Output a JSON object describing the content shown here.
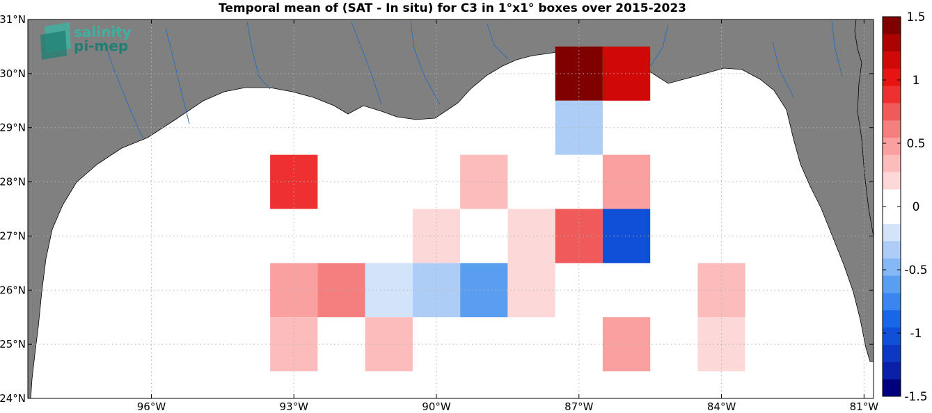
{
  "title": "Temporal mean of (SAT - In situ) for C3 in 1°x1° boxes over 2015-2023",
  "logo": {
    "line1": "salinity",
    "line2": "pi-mep",
    "color1": "#3fb0a0",
    "color2": "#1e7f72"
  },
  "map": {
    "lon_range": [
      -98.6,
      -80.8
    ],
    "lat_range": [
      24,
      31
    ],
    "land_color": "#808080",
    "ocean_color": "#ffffff",
    "river_color": "#2f6fb5",
    "lat_ticks": [
      {
        "value": 24,
        "label": "24°N"
      },
      {
        "value": 25,
        "label": "25°N"
      },
      {
        "value": 26,
        "label": "26°N"
      },
      {
        "value": 27,
        "label": "27°N"
      },
      {
        "value": 28,
        "label": "28°N"
      },
      {
        "value": 29,
        "label": "29°N"
      },
      {
        "value": 30,
        "label": "30°N"
      },
      {
        "value": 31,
        "label": "31°N"
      }
    ],
    "lon_ticks": [
      {
        "value": -96,
        "label": "96°W"
      },
      {
        "value": -93,
        "label": "93°W"
      },
      {
        "value": -90,
        "label": "90°W"
      },
      {
        "value": -87,
        "label": "87°W"
      },
      {
        "value": -84,
        "label": "84°W"
      },
      {
        "value": -81,
        "label": "81°W"
      }
    ]
  },
  "boxes": [
    {
      "lon": -87.0,
      "lat": 30.0,
      "value": 1.45
    },
    {
      "lon": -86.0,
      "lat": 30.0,
      "value": 1.15
    },
    {
      "lon": -87.0,
      "lat": 29.0,
      "value": -0.35
    },
    {
      "lon": -93.0,
      "lat": 28.0,
      "value": 0.9
    },
    {
      "lon": -90.0,
      "lat": 28.0,
      "value": -0.1
    },
    {
      "lon": -89.0,
      "lat": 28.0,
      "value": 0.35
    },
    {
      "lon": -86.0,
      "lat": 28.0,
      "value": 0.45
    },
    {
      "lon": -94.0,
      "lat": 27.0,
      "value": -0.1
    },
    {
      "lon": -93.0,
      "lat": 27.0,
      "value": 0.0
    },
    {
      "lon": -92.0,
      "lat": 27.0,
      "value": -0.1
    },
    {
      "lon": -90.0,
      "lat": 27.0,
      "value": 0.15
    },
    {
      "lon": -89.0,
      "lat": 27.0,
      "value": 0.0
    },
    {
      "lon": -88.0,
      "lat": 27.0,
      "value": 0.15
    },
    {
      "lon": -87.0,
      "lat": 27.0,
      "value": 0.75
    },
    {
      "lon": -86.0,
      "lat": 27.0,
      "value": -1.0
    },
    {
      "lon": -93.0,
      "lat": 26.0,
      "value": 0.45
    },
    {
      "lon": -92.0,
      "lat": 26.0,
      "value": 0.65
    },
    {
      "lon": -91.0,
      "lat": 26.0,
      "value": -0.25
    },
    {
      "lon": -90.0,
      "lat": 26.0,
      "value": -0.35
    },
    {
      "lon": -89.0,
      "lat": 26.0,
      "value": -0.6
    },
    {
      "lon": -88.0,
      "lat": 26.0,
      "value": 0.15
    },
    {
      "lon": -84.0,
      "lat": 26.0,
      "value": 0.3
    },
    {
      "lon": -93.0,
      "lat": 25.0,
      "value": 0.3
    },
    {
      "lon": -91.0,
      "lat": 25.0,
      "value": 0.3
    },
    {
      "lon": -86.0,
      "lat": 25.0,
      "value": 0.5
    },
    {
      "lon": -84.0,
      "lat": 25.0,
      "value": 0.15
    },
    {
      "lon": -83.0,
      "lat": 25.0,
      "value": -0.1
    }
  ],
  "colorbar": {
    "min": -1.5,
    "max": 1.5,
    "ticks": [
      {
        "value": 1.5,
        "label": "1.5"
      },
      {
        "value": 1,
        "label": "1"
      },
      {
        "value": 0.5,
        "label": "0.5"
      },
      {
        "value": 0,
        "label": "0"
      },
      {
        "value": -0.5,
        "label": "-0.5"
      },
      {
        "value": -1,
        "label": "-1"
      },
      {
        "value": -1.5,
        "label": "-1.5"
      }
    ],
    "colors": [
      "#00007f",
      "#0a20a8",
      "#0d38c4",
      "#1050d8",
      "#1a66e8",
      "#3a85ef",
      "#5a9ef2",
      "#86b8f5",
      "#aecdf6",
      "#d2e3fa",
      "#ffffff",
      "#ffffff",
      "#fcd8d8",
      "#fcbcbc",
      "#faa0a0",
      "#f57e7e",
      "#f05a5a",
      "#ee3030",
      "#e81414",
      "#d00808",
      "#ac0202",
      "#800000"
    ]
  }
}
